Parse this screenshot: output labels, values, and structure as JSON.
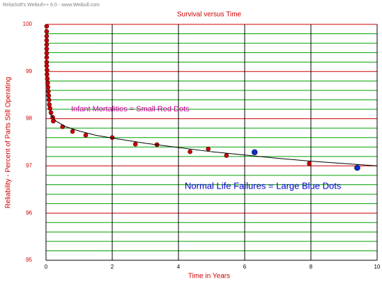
{
  "chart_data": {
    "type": "scatter",
    "watermark": "ReliaSoft's Weibull++ 6.0 - www.Weibull.com",
    "title": "Survival versus Time",
    "x_label": "Time in Years",
    "y_label": "Reliability - Percent of Parts Still Operating",
    "annotations": [
      "Infant Mortalities = Small Red Dots",
      "Normal Life Failures = Large Blue Dots"
    ],
    "xlim": [
      0,
      10
    ],
    "xticks": [
      0,
      2,
      4,
      6,
      8,
      10
    ],
    "ylim": [
      95,
      100
    ],
    "yticks": [
      95,
      96,
      97,
      98,
      99,
      100
    ],
    "yminorticks": [
      95.2,
      95.4,
      95.6,
      95.8,
      96.2,
      96.4,
      96.6,
      96.8,
      97.2,
      97.4,
      97.6,
      97.8,
      98.2,
      98.4,
      98.6,
      98.8,
      99.2,
      99.4,
      99.6,
      99.8
    ],
    "grid": true,
    "major_grid_color": "#cc0000",
    "minor_grid_color": "#00a000",
    "vertical_grid_color": "#000000",
    "series": [
      {
        "color": "#cc0000",
        "marker": "dot",
        "size": 3,
        "x": [
          0.02,
          0.02,
          0.02,
          0.02,
          0.02,
          0.02,
          0.02,
          0.02,
          0.02,
          0.02,
          0.03,
          0.03,
          0.04,
          0.05,
          0.06,
          0.07,
          0.08,
          0.09,
          0.1,
          0.12,
          0.15,
          0.2,
          0.22,
          0.5,
          0.8,
          1.2,
          2.0,
          2.7,
          3.35,
          4.35,
          4.9,
          5.45,
          7.95
        ],
        "values": [
          99.96,
          99.85,
          99.75,
          99.66,
          99.57,
          99.48,
          99.39,
          99.3,
          99.2,
          99.12,
          99.03,
          98.94,
          98.85,
          98.76,
          98.67,
          98.58,
          98.49,
          98.4,
          98.3,
          98.22,
          98.13,
          98.03,
          97.95,
          97.83,
          97.73,
          97.65,
          97.6,
          97.46,
          97.45,
          97.3,
          97.36,
          97.22,
          97.05
        ]
      },
      {
        "color": "#0033cc",
        "marker": "dot",
        "size": 4,
        "x": [
          6.3,
          9.4
        ],
        "values": [
          97.29,
          96.96
        ]
      },
      {
        "color": "#000000",
        "marker": "line",
        "x": [
          0.12,
          0.3,
          0.6,
          1,
          1.5,
          2,
          3,
          4,
          5,
          6,
          7,
          8,
          9,
          10
        ],
        "values": [
          98.1,
          97.95,
          97.83,
          97.74,
          97.65,
          97.59,
          97.48,
          97.39,
          97.3,
          97.23,
          97.16,
          97.1,
          97.05,
          97.0
        ]
      }
    ]
  }
}
